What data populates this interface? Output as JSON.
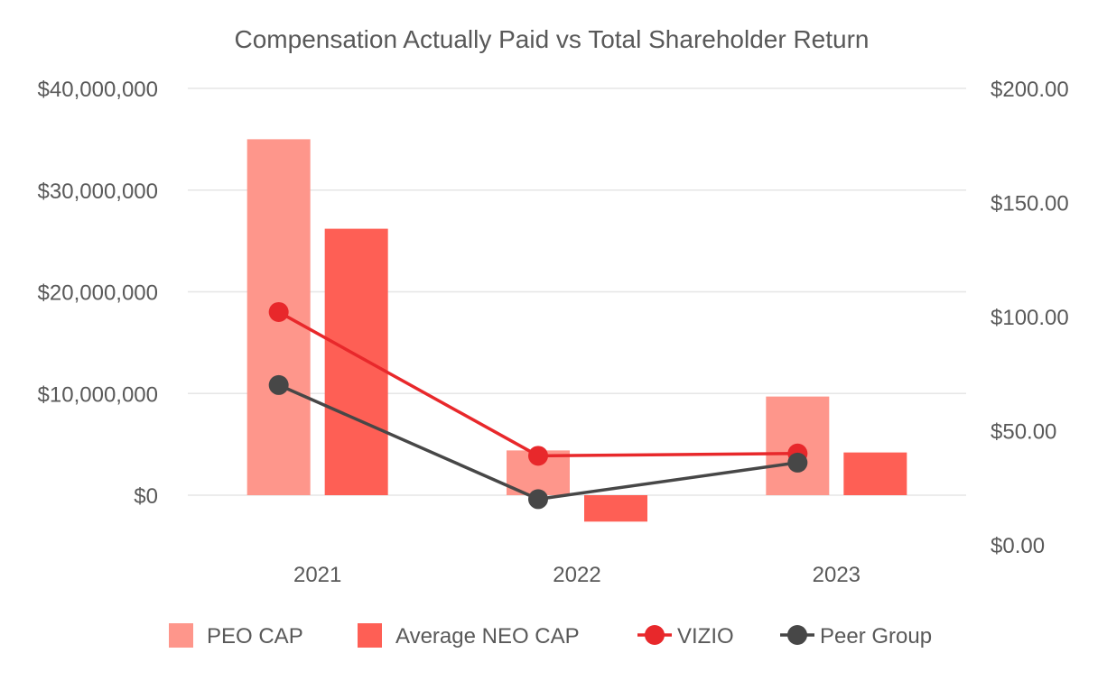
{
  "chart_data": {
    "type": "bar",
    "title": "Compensation Actually Paid vs Total Shareholder Return",
    "categories": [
      "2021",
      "2022",
      "2023"
    ],
    "y_left": {
      "min": -4000000,
      "max": 40000000,
      "ticks": [
        0,
        10000000,
        20000000,
        30000000,
        40000000
      ],
      "tick_labels": [
        "$0",
        "$10,000,000",
        "$20,000,000",
        "$30,000,000",
        "$40,000,000"
      ]
    },
    "y_right": {
      "min": 0,
      "max": 200,
      "ticks": [
        0,
        50,
        100,
        150,
        200
      ],
      "tick_labels": [
        "$0.00",
        "$50.00",
        "$100.00",
        "$150.00",
        "$200.00"
      ]
    },
    "grid": true,
    "legend_position": "bottom",
    "series": [
      {
        "name": "PEO CAP",
        "kind": "bar",
        "axis": "left",
        "color": "#fe968b",
        "values": [
          35000000,
          4400000,
          9700000
        ]
      },
      {
        "name": "Average NEO CAP",
        "kind": "bar",
        "axis": "left",
        "color": "#fe5f55",
        "values": [
          26200000,
          -2600000,
          4200000
        ]
      },
      {
        "name": "VIZIO",
        "kind": "line",
        "axis": "right",
        "color": "#e8282b",
        "values": [
          102,
          39,
          40
        ]
      },
      {
        "name": "Peer Group",
        "kind": "line",
        "axis": "right",
        "color": "#474747",
        "values": [
          70,
          20,
          36
        ]
      }
    ]
  },
  "colors": {
    "title": "#595959",
    "axis_text": "#595959",
    "grid": "#e6e6e6"
  }
}
